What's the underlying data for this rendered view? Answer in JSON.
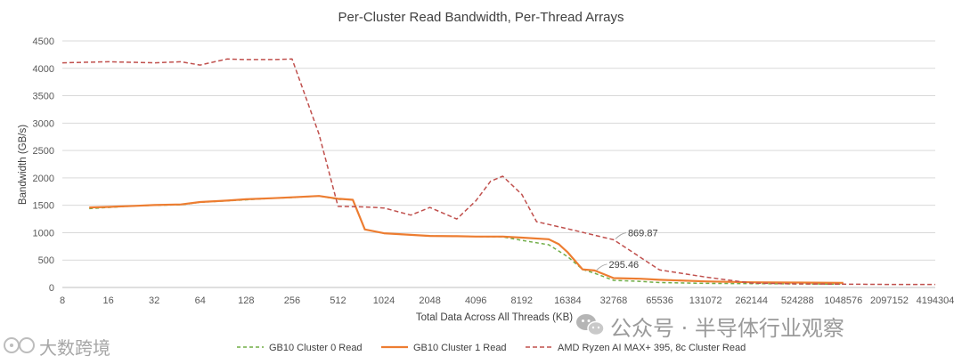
{
  "chart_data": {
    "type": "line",
    "title": "Per-Cluster Read Bandwidth, Per-Thread Arrays",
    "xlabel": "Total Data Across All Threads (KB)",
    "ylabel": "Bandwidth (GB/s)",
    "x_scale": "log2",
    "xlim": [
      8,
      4194304
    ],
    "ylim": [
      0,
      4500
    ],
    "x_ticks": [
      "8",
      "16",
      "32",
      "64",
      "128",
      "256",
      "512",
      "1024",
      "2048",
      "4096",
      "8192",
      "16384",
      "32768",
      "65536",
      "131072",
      "262144",
      "524288",
      "1048576",
      "2097152",
      "4194304"
    ],
    "y_ticks": [
      "0",
      "500",
      "1000",
      "1500",
      "2000",
      "2500",
      "3000",
      "3500",
      "4000",
      "4500"
    ],
    "grid": "horizontal",
    "legend_position": "bottom",
    "series": [
      {
        "name": "GB10 Cluster 0 Read",
        "color": "#70ad47",
        "dash": "dashed",
        "points": [
          [
            12,
            1440
          ],
          [
            16,
            1460
          ],
          [
            24,
            1490
          ],
          [
            32,
            1500
          ],
          [
            48,
            1510
          ],
          [
            64,
            1555
          ],
          [
            96,
            1580
          ],
          [
            128,
            1600
          ],
          [
            192,
            1630
          ],
          [
            256,
            1640
          ],
          [
            384,
            1670
          ],
          [
            512,
            1610
          ],
          [
            640,
            1600
          ],
          [
            768,
            1060
          ],
          [
            1024,
            990
          ],
          [
            1536,
            960
          ],
          [
            2048,
            940
          ],
          [
            3072,
            935
          ],
          [
            4096,
            930
          ],
          [
            6144,
            925
          ],
          [
            8192,
            860
          ],
          [
            12288,
            780
          ],
          [
            16384,
            560
          ],
          [
            20480,
            330
          ],
          [
            24576,
            260
          ],
          [
            32768,
            130
          ],
          [
            49152,
            110
          ],
          [
            65536,
            90
          ],
          [
            131072,
            75
          ],
          [
            262144,
            70
          ],
          [
            524288,
            65
          ],
          [
            1048576,
            60
          ]
        ]
      },
      {
        "name": "GB10 Cluster 1 Read",
        "color": "#ed7d31",
        "dash": "solid",
        "points": [
          [
            12,
            1460
          ],
          [
            16,
            1470
          ],
          [
            24,
            1490
          ],
          [
            32,
            1505
          ],
          [
            48,
            1515
          ],
          [
            64,
            1560
          ],
          [
            96,
            1585
          ],
          [
            128,
            1610
          ],
          [
            192,
            1630
          ],
          [
            256,
            1645
          ],
          [
            384,
            1670
          ],
          [
            512,
            1620
          ],
          [
            640,
            1600
          ],
          [
            768,
            1060
          ],
          [
            1024,
            990
          ],
          [
            1536,
            960
          ],
          [
            2048,
            940
          ],
          [
            3072,
            935
          ],
          [
            4096,
            930
          ],
          [
            6144,
            930
          ],
          [
            8192,
            910
          ],
          [
            12288,
            880
          ],
          [
            14336,
            790
          ],
          [
            16384,
            640
          ],
          [
            20480,
            330
          ],
          [
            24576,
            310
          ],
          [
            32768,
            170
          ],
          [
            49152,
            160
          ],
          [
            65536,
            140
          ],
          [
            131072,
            110
          ],
          [
            262144,
            95
          ],
          [
            524288,
            90
          ],
          [
            1048576,
            85
          ]
        ]
      },
      {
        "name": "AMD Ryzen AI MAX+ 395, 8c Cluster Read",
        "color": "#c0504d",
        "dash": "dashed",
        "points": [
          [
            8,
            4100
          ],
          [
            16,
            4120
          ],
          [
            32,
            4100
          ],
          [
            48,
            4120
          ],
          [
            64,
            4060
          ],
          [
            96,
            4170
          ],
          [
            128,
            4160
          ],
          [
            192,
            4160
          ],
          [
            256,
            4170
          ],
          [
            384,
            2800
          ],
          [
            512,
            1480
          ],
          [
            768,
            1470
          ],
          [
            1024,
            1450
          ],
          [
            1536,
            1320
          ],
          [
            2048,
            1460
          ],
          [
            3072,
            1250
          ],
          [
            4096,
            1580
          ],
          [
            5120,
            1940
          ],
          [
            6144,
            2030
          ],
          [
            8192,
            1700
          ],
          [
            10240,
            1200
          ],
          [
            16384,
            1070
          ],
          [
            32768,
            870
          ],
          [
            65536,
            320
          ],
          [
            131072,
            190
          ],
          [
            262144,
            80
          ],
          [
            524288,
            65
          ],
          [
            1048576,
            60
          ],
          [
            2097152,
            55
          ],
          [
            4194304,
            55
          ]
        ]
      }
    ],
    "annotations": [
      {
        "label": "869.87",
        "x": 32768,
        "y": 869.87
      },
      {
        "label": "295.46",
        "x": 24576,
        "y": 295.46
      }
    ]
  },
  "watermarks": {
    "top": "公众号 · 半导体行业观察",
    "bottom_left": "大数跨境"
  }
}
